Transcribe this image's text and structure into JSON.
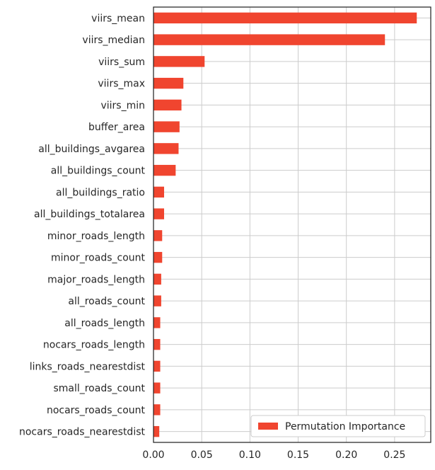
{
  "chart_data": {
    "type": "bar",
    "orientation": "horizontal",
    "title": "",
    "xlabel": "",
    "ylabel": "",
    "categories": [
      "viirs_mean",
      "viirs_median",
      "viirs_sum",
      "viirs_max",
      "viirs_min",
      "buffer_area",
      "all_buildings_avgarea",
      "all_buildings_count",
      "all_buildings_ratio",
      "all_buildings_totalarea",
      "minor_roads_length",
      "minor_roads_count",
      "major_roads_length",
      "all_roads_count",
      "all_roads_length",
      "nocars_roads_length",
      "links_roads_nearestdist",
      "small_roads_count",
      "nocars_roads_count",
      "nocars_roads_nearestdist"
    ],
    "series": [
      {
        "name": "Permutation Importance",
        "color": "#f0452f",
        "values": [
          0.273,
          0.24,
          0.053,
          0.031,
          0.029,
          0.027,
          0.026,
          0.023,
          0.011,
          0.011,
          0.009,
          0.009,
          0.008,
          0.008,
          0.007,
          0.007,
          0.007,
          0.007,
          0.007,
          0.006
        ]
      }
    ],
    "xlim": [
      0,
      0.2875
    ],
    "xticks": [
      0.0,
      0.05,
      0.1,
      0.15,
      0.2,
      0.25
    ],
    "xtick_labels": [
      "0.00",
      "0.05",
      "0.10",
      "0.15",
      "0.20",
      "0.25"
    ],
    "grid": true,
    "legend_position": "lower-right"
  }
}
